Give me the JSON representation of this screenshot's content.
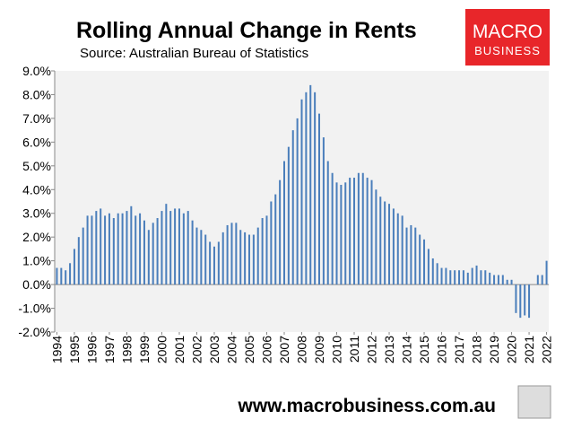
{
  "chart_data": {
    "type": "bar",
    "title": "Rolling Annual Change in Rents",
    "subtitle": "Source: Australian Bureau of Statistics",
    "categories": [
      "1994",
      null,
      null,
      null,
      "1995",
      null,
      null,
      null,
      "1996",
      null,
      null,
      null,
      "1997",
      null,
      null,
      null,
      "1998",
      null,
      null,
      null,
      "1999",
      null,
      null,
      null,
      "2000",
      null,
      null,
      null,
      "2001",
      null,
      null,
      null,
      "2002",
      null,
      null,
      null,
      "2003",
      null,
      null,
      null,
      "2004",
      null,
      null,
      null,
      "2005",
      null,
      null,
      null,
      "2006",
      null,
      null,
      null,
      "2007",
      null,
      null,
      null,
      "2008",
      null,
      null,
      null,
      "2009",
      null,
      null,
      null,
      "2010",
      null,
      null,
      null,
      "2011",
      null,
      null,
      null,
      "2012",
      null,
      null,
      null,
      "2013",
      null,
      null,
      null,
      "2014",
      null,
      null,
      null,
      "2015",
      null,
      null,
      null,
      "2016",
      null,
      null,
      null,
      "2017",
      null,
      null,
      null,
      "2018",
      null,
      null,
      null,
      "2019",
      null,
      null,
      null,
      "2020",
      null,
      null,
      null,
      "2021",
      null,
      null,
      null,
      "2022"
    ],
    "values": [
      0.7,
      0.7,
      0.6,
      0.9,
      1.5,
      2.0,
      2.4,
      2.9,
      2.9,
      3.1,
      3.2,
      2.9,
      3.0,
      2.8,
      3.0,
      3.0,
      3.1,
      3.3,
      2.9,
      3.0,
      2.7,
      2.3,
      2.6,
      2.8,
      3.1,
      3.4,
      3.1,
      3.2,
      3.2,
      3.0,
      3.1,
      2.7,
      2.4,
      2.3,
      2.1,
      1.8,
      1.6,
      1.8,
      2.2,
      2.5,
      2.6,
      2.6,
      2.3,
      2.2,
      2.1,
      2.1,
      2.4,
      2.8,
      2.9,
      3.5,
      3.8,
      4.4,
      5.2,
      5.8,
      6.5,
      7.0,
      7.8,
      8.1,
      8.4,
      8.1,
      7.2,
      6.2,
      5.2,
      4.7,
      4.3,
      4.2,
      4.3,
      4.5,
      4.5,
      4.7,
      4.7,
      4.5,
      4.4,
      4.0,
      3.7,
      3.5,
      3.4,
      3.2,
      3.0,
      2.9,
      2.4,
      2.5,
      2.4,
      2.1,
      1.9,
      1.5,
      1.1,
      0.9,
      0.7,
      0.7,
      0.6,
      0.6,
      0.6,
      0.6,
      0.5,
      0.7,
      0.8,
      0.6,
      0.6,
      0.5,
      0.4,
      0.4,
      0.4,
      0.2,
      0.2,
      -1.2,
      -1.4,
      -1.3,
      -1.4,
      0.0,
      0.4,
      0.4,
      1.0
    ],
    "color": "#4a7ebb",
    "ylim": [
      -2,
      9
    ],
    "yticks": [
      {
        "value": -2,
        "label": "-2.0%"
      },
      {
        "value": -1,
        "label": "-1.0%"
      },
      {
        "value": 0,
        "label": "0.0%"
      },
      {
        "value": 1,
        "label": "1.0%"
      },
      {
        "value": 2,
        "label": "2.0%"
      },
      {
        "value": 3,
        "label": "3.0%"
      },
      {
        "value": 4,
        "label": "4.0%"
      },
      {
        "value": 5,
        "label": "5.0%"
      },
      {
        "value": 6,
        "label": "6.0%"
      },
      {
        "value": 7,
        "label": "7.0%"
      },
      {
        "value": 8,
        "label": "8.0%"
      },
      {
        "value": 9,
        "label": "9.0%"
      }
    ],
    "grid": false
  },
  "branding": {
    "logo_top": "MACRO",
    "logo_bottom": "BUSINESS",
    "website": "www.macrobusiness.com.au"
  }
}
